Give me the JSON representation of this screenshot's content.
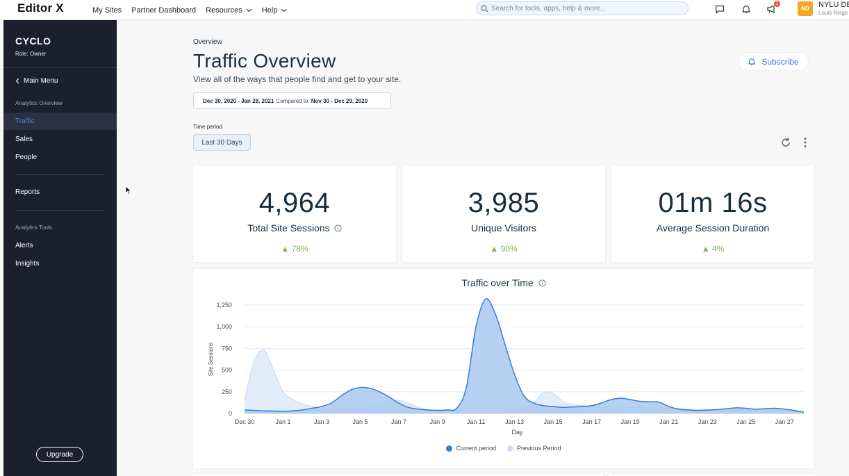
{
  "topbar": {
    "logo": "Editor X",
    "nav": [
      {
        "label": "My Sites",
        "dropdown": false
      },
      {
        "label": "Partner Dashboard",
        "dropdown": false
      },
      {
        "label": "Resources",
        "dropdown": true
      },
      {
        "label": "Help",
        "dropdown": true
      }
    ],
    "search_placeholder": "Search for tools, apps, help & more...",
    "notification_count": "1",
    "avatar_initials": "ND",
    "user_name": "NYLU DE",
    "user_sub": "Louis Ringo"
  },
  "sidebar": {
    "site_name": "CYCLO",
    "role": "Role: Owner",
    "main_menu": "Main Menu",
    "section_analytics": "Analytics Overview",
    "items_top": [
      "Traffic",
      "Sales",
      "People"
    ],
    "reports": "Reports",
    "section_tools": "Analytics Tools",
    "items_tools": [
      "Alerts",
      "Insights"
    ],
    "upgrade": "Upgrade"
  },
  "main": {
    "breadcrumb": "Overview",
    "title": "Traffic Overview",
    "subtitle": "View all of the ways that people find and get to your site.",
    "subscribe": "Subscribe",
    "date_range": "Dec 30, 2020 - Jan 28, 2021",
    "compared_label": "Compared to:",
    "compared_range": "Nov 30 - Dec 29, 2020",
    "time_period_label": "Time period",
    "time_period_value": "Last 30 Days"
  },
  "kpis": [
    {
      "value": "4,964",
      "label": "Total Site Sessions",
      "info": true,
      "change": "▲ 78%"
    },
    {
      "value": "3,985",
      "label": "Unique Visitors",
      "info": false,
      "change": "▲ 90%"
    },
    {
      "value": "01m 16s",
      "label": "Average Session Duration",
      "info": false,
      "change": "▲ 4%"
    }
  ],
  "colors": {
    "current": "#3a7bd5",
    "current_fill": "#a9c8f0",
    "previous": "#cfe0f5",
    "previous_fill": "#dceaf8",
    "accent": "#3b8ae6",
    "positive": "#7fb35a"
  },
  "chart_data": {
    "type": "area",
    "title": "Traffic over Time",
    "xlabel": "Day",
    "ylabel": "Site Sessions",
    "ylim": [
      0,
      1250
    ],
    "yticks": [
      0,
      250,
      500,
      750,
      "1,000",
      "1,250"
    ],
    "xticks": [
      "Dec 30",
      "Jan 1",
      "Jan 3",
      "Jan 5",
      "Jan 7",
      "Jan 9",
      "Jan 11",
      "Jan 13",
      "Jan 15",
      "Jan 17",
      "Jan 19",
      "Jan 21",
      "Jan 23",
      "Jan 25",
      "Jan 27"
    ],
    "legend": [
      "Current period",
      "Previous Period"
    ],
    "series": [
      {
        "name": "Current period",
        "x": [
          0,
          0.5,
          1,
          1.5,
          2,
          2.5,
          3,
          3.5,
          4,
          4.5,
          5,
          5.5,
          6,
          6.5,
          7,
          7.5,
          8,
          8.5,
          9,
          9.5,
          10,
          10.5,
          11,
          11.5,
          12,
          12.5,
          13,
          13.5,
          14,
          14.5,
          15,
          15.5,
          16,
          16.5,
          17,
          17.5,
          18,
          18.5,
          19,
          19.5,
          20,
          20.5,
          21,
          21.5,
          22,
          22.5,
          23,
          23.5,
          24,
          24.5,
          25,
          25.5,
          26,
          26.5,
          27,
          27.5,
          28,
          28.5,
          29
        ],
        "values": [
          40,
          35,
          30,
          28,
          25,
          30,
          40,
          60,
          80,
          120,
          200,
          270,
          300,
          290,
          250,
          190,
          120,
          70,
          50,
          40,
          35,
          40,
          60,
          300,
          1000,
          1320,
          1150,
          800,
          450,
          200,
          120,
          90,
          80,
          70,
          75,
          80,
          90,
          120,
          160,
          175,
          160,
          140,
          135,
          130,
          80,
          50,
          40,
          35,
          38,
          45,
          55,
          65,
          60,
          50,
          55,
          60,
          50,
          35,
          15
        ]
      },
      {
        "name": "Previous Period",
        "x": [
          0,
          0.5,
          1,
          1.5,
          2,
          2.5,
          3,
          3.5,
          4,
          4.5,
          5,
          5.5,
          6,
          6.5,
          7,
          7.5,
          8,
          8.5,
          9,
          9.5,
          10,
          10.5,
          11,
          11.5,
          12,
          12.5,
          13,
          13.5,
          14,
          14.5,
          15,
          15.5,
          16,
          16.5,
          17,
          17.5,
          18,
          18.5,
          19,
          19.5,
          20,
          20.5,
          21,
          21.5,
          22,
          22.5,
          23,
          23.5,
          24,
          24.5,
          25,
          25.5,
          26,
          26.5,
          27,
          27.5,
          28,
          28.5,
          29
        ],
        "values": [
          150,
          600,
          730,
          500,
          250,
          160,
          110,
          80,
          60,
          50,
          45,
          50,
          60,
          80,
          110,
          140,
          150,
          120,
          70,
          45,
          40,
          45,
          40,
          35,
          40,
          40,
          40,
          40,
          45,
          50,
          120,
          240,
          230,
          140,
          100,
          90,
          85,
          80,
          80,
          75,
          70,
          70,
          70,
          65,
          60,
          55,
          50,
          45,
          45,
          40,
          45,
          40,
          40,
          35,
          35,
          30,
          30,
          25,
          20
        ]
      }
    ]
  },
  "icons": {
    "search": "search-icon",
    "chat": "chat-icon",
    "bell": "bell-icon",
    "megaphone": "megaphone-icon",
    "info": "info-icon",
    "refresh": "refresh-icon",
    "more": "more-vertical-icon"
  }
}
